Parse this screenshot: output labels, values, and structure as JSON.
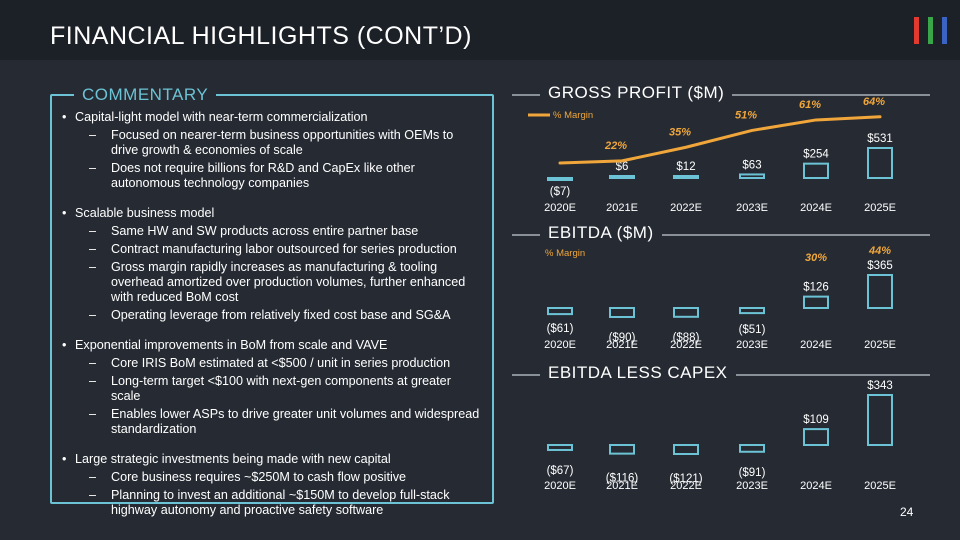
{
  "slide": {
    "title": "FINANCIAL HIGHLIGHTS (CONT’D)",
    "page_number": "24",
    "logo_colors": [
      "#e23a2f",
      "#3aa64a",
      "#3b63c4"
    ]
  },
  "commentary": {
    "heading": "COMMENTARY",
    "bullets": [
      {
        "text": "Capital-light model with near-term commercialization",
        "subs": [
          "Focused on nearer-term business opportunities with OEMs to drive growth & economies of scale",
          "Does not require billions for R&D and CapEx like other autonomous technology companies"
        ]
      },
      {
        "text": "Scalable business model",
        "subs": [
          "Same HW and SW products across entire partner base",
          "Contract manufacturing labor outsourced for series production",
          "Gross margin rapidly increases as manufacturing & tooling overhead amortized over production volumes, further enhanced with reduced BoM cost",
          "Operating leverage from relatively fixed cost base and SG&A"
        ]
      },
      {
        "text": "Exponential improvements in BoM from scale and VAVE",
        "subs": [
          "Core IRIS BoM estimated at <$500 / unit in series production",
          "Long-term target <$100 with next-gen components at greater scale",
          "Enables lower ASPs to drive greater unit volumes and widespread standardization"
        ]
      },
      {
        "text": "Large strategic investments being made with new capital",
        "subs": [
          "Core business requires ~$250M to cash flow positive",
          "Planning to invest an additional ~$150M to develop full-stack highway autonomy and proactive safety software"
        ]
      }
    ]
  },
  "colors": {
    "background": "#262b33",
    "header": "#1c2027",
    "accent": "#6cc3d5",
    "margin_line": "#f0a63a",
    "margin_text": "#f0a63a",
    "bar_outline": "#6cc3d5",
    "rule": "#8a9098"
  },
  "chart_data": [
    {
      "type": "bar",
      "title": "GROSS PROFIT ($M)",
      "categories": [
        "2020E",
        "2021E",
        "2022E",
        "2023E",
        "2024E",
        "2025E"
      ],
      "values": [
        -7,
        6,
        12,
        63,
        254,
        531
      ],
      "value_labels": [
        "($7)",
        "$6",
        "$12",
        "$63",
        "$254",
        "$531"
      ],
      "margin_legend": "% Margin",
      "margin_series": {
        "values": [
          null,
          22,
          35,
          51,
          61,
          64
        ],
        "labels": [
          "",
          "22%",
          "35%",
          "51%",
          "61%",
          "64%"
        ]
      }
    },
    {
      "type": "bar",
      "title": "EBITDA ($M)",
      "categories": [
        "2020E",
        "2021E",
        "2022E",
        "2023E",
        "2024E",
        "2025E"
      ],
      "values": [
        -61,
        -90,
        -88,
        -51,
        126,
        365
      ],
      "value_labels": [
        "($61)",
        "($90)",
        "($88)",
        "($51)",
        "$126",
        "$365"
      ],
      "margin_legend": "% Margin",
      "margin_labels": [
        "",
        "",
        "",
        "",
        "30%",
        "44%"
      ]
    },
    {
      "type": "bar",
      "title": "EBITDA LESS CAPEX",
      "categories": [
        "2020E",
        "2021E",
        "2022E",
        "2023E",
        "2024E",
        "2025E"
      ],
      "values": [
        -67,
        -116,
        -121,
        -91,
        109,
        343
      ],
      "value_labels": [
        "($67)",
        "($116)",
        "($121)",
        "($91)",
        "$109",
        "$343"
      ]
    }
  ]
}
